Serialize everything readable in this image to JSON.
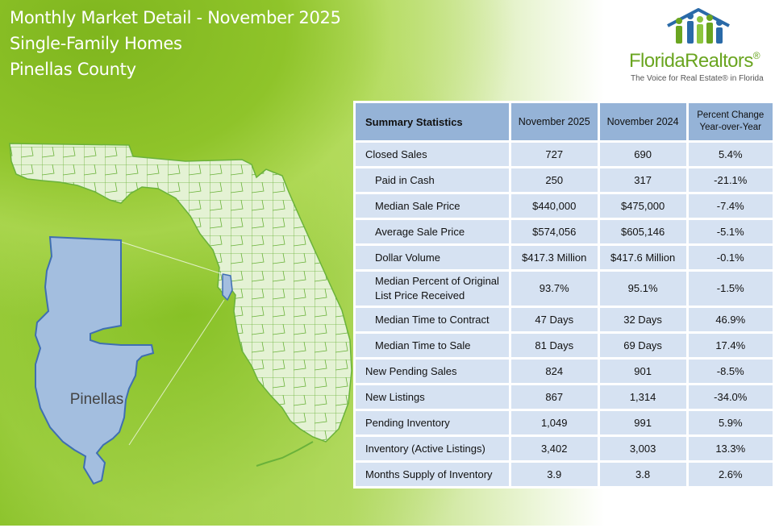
{
  "header": {
    "title": "Monthly Market Detail - November 2025",
    "property_type": "Single-Family Homes",
    "county": "Pinellas County"
  },
  "logo": {
    "name": "FloridaRealtors",
    "registered_mark": "®",
    "tagline": "The Voice for Real Estate® in Florida",
    "brand_color": "#6aa520"
  },
  "map": {
    "county_label": "Pinellas",
    "state_fill": "#e4f2d4",
    "county_fill": "#a3bedf",
    "county_stroke": "#3f6fb1"
  },
  "table": {
    "headers": {
      "label": "Summary Statistics",
      "current": "November 2025",
      "prior": "November 2024",
      "change_line1": "Percent Change",
      "change_line2": "Year-over-Year"
    },
    "rows": [
      {
        "label": "Closed Sales",
        "current": "727",
        "prior": "690",
        "change": "5.4%"
      },
      {
        "label": "Paid in Cash",
        "current": "250",
        "prior": "317",
        "change": "-21.1%"
      },
      {
        "label": "Median Sale Price",
        "current": "$440,000",
        "prior": "$475,000",
        "change": "-7.4%"
      },
      {
        "label": "Average Sale Price",
        "current": "$574,056",
        "prior": "$605,146",
        "change": "-5.1%"
      },
      {
        "label": "Dollar Volume",
        "current": "$417.3 Million",
        "prior": "$417.6 Million",
        "change": "-0.1%"
      },
      {
        "label_line1": "Median Percent of Original",
        "label_line2": "List Price Received",
        "current": "93.7%",
        "prior": "95.1%",
        "change": "-1.5%"
      },
      {
        "label": "Median Time to Contract",
        "current": "47 Days",
        "prior": "32 Days",
        "change": "46.9%"
      },
      {
        "label": "Median Time to Sale",
        "current": "81 Days",
        "prior": "69 Days",
        "change": "17.4%"
      },
      {
        "label": "New Pending Sales",
        "current": "824",
        "prior": "901",
        "change": "-8.5%"
      },
      {
        "label": "New Listings",
        "current": "867",
        "prior": "1,314",
        "change": "-34.0%"
      },
      {
        "label": "Pending Inventory",
        "current": "1,049",
        "prior": "991",
        "change": "5.9%"
      },
      {
        "label": "Inventory (Active Listings)",
        "current": "3,402",
        "prior": "3,003",
        "change": "13.3%"
      },
      {
        "label": "Months Supply of Inventory",
        "current": "3.9",
        "prior": "3.8",
        "change": "2.6%"
      }
    ]
  }
}
